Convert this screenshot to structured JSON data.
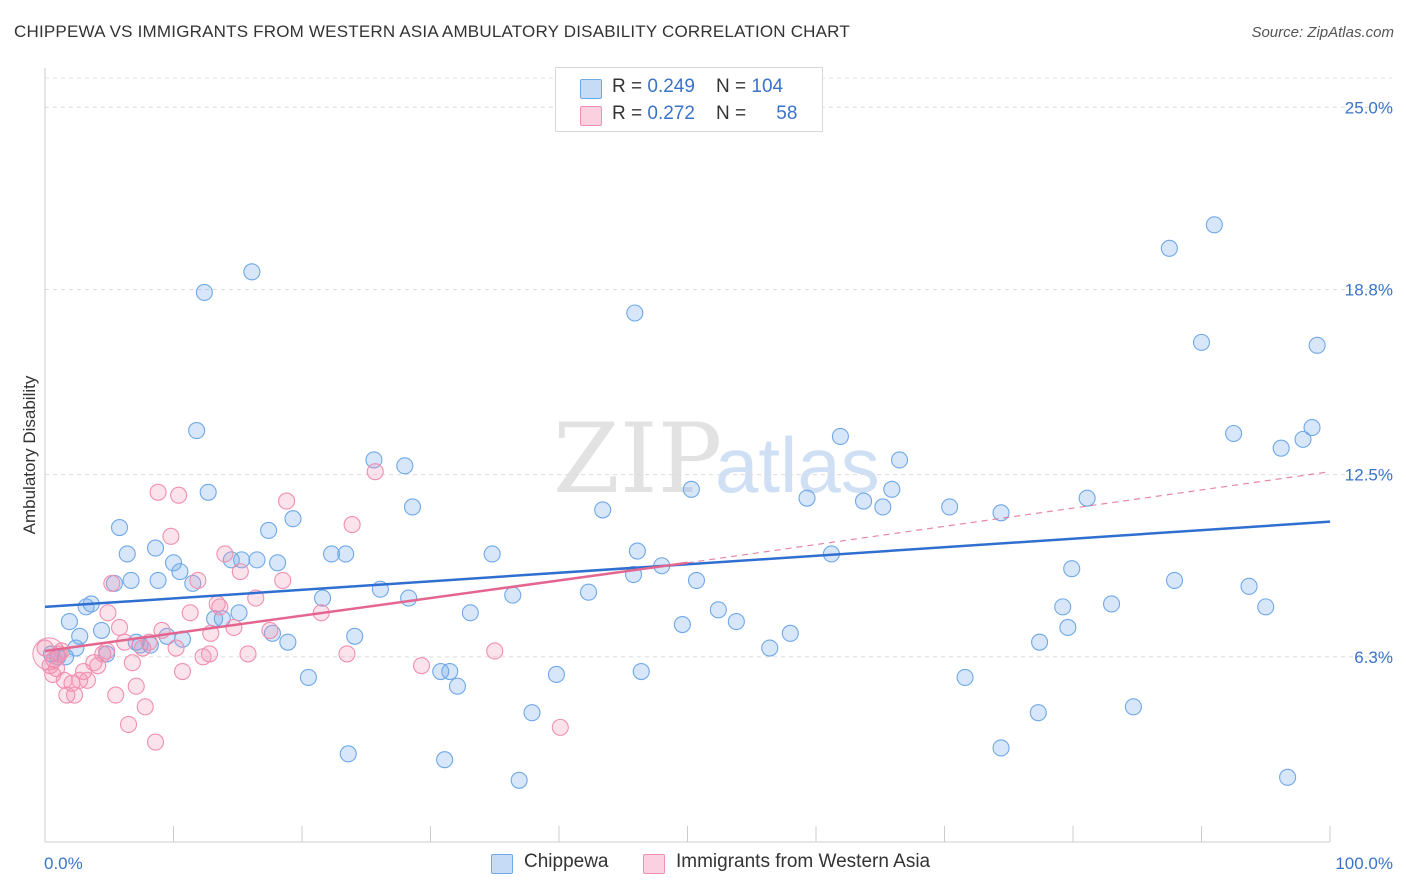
{
  "title": "CHIPPEWA VS IMMIGRANTS FROM WESTERN ASIA AMBULATORY DISABILITY CORRELATION CHART",
  "source": "Source: ZipAtlas.com",
  "watermark": {
    "zip": "ZIP",
    "atlas": "atlas"
  },
  "legend": {
    "rows": [
      {
        "r_label": "R = ",
        "r_value": "0.249",
        "n_label": "N = ",
        "n_value": "104",
        "color": "#6fa8e8"
      },
      {
        "r_label": "R = ",
        "r_value": "0.272",
        "n_label": "N = ",
        "n_value": "58",
        "color": "#f18fb0"
      }
    ]
  },
  "bottom_legend": [
    {
      "label": "Chippewa",
      "color": "#6fa8e8"
    },
    {
      "label": "Immigrants from Western Asia",
      "color": "#f18fb0"
    }
  ],
  "chart_data": {
    "type": "scatter",
    "title": "CHIPPEWA VS IMMIGRANTS FROM WESTERN ASIA AMBULATORY DISABILITY CORRELATION CHART",
    "xlabel": "",
    "ylabel": "Ambulatory Disability",
    "xlim": [
      0,
      100
    ],
    "ylim": [
      0,
      26.2
    ],
    "x_tick_labels": [
      "0.0%",
      "100.0%"
    ],
    "y_ticks": [
      6.3,
      12.5,
      18.8,
      25.0
    ],
    "y_tick_labels": [
      "6.3%",
      "12.5%",
      "18.8%",
      "25.0%"
    ],
    "grid": true,
    "legend_position": "top-center",
    "series": [
      {
        "name": "Chippewa",
        "color": "#6fa8e8",
        "R": 0.249,
        "N": 104,
        "trend": {
          "x": [
            0,
            100
          ],
          "y": [
            8.0,
            10.9
          ],
          "color": "#2f6fd0"
        },
        "points": [
          [
            0.5,
            6.4
          ],
          [
            1.0,
            6.3
          ],
          [
            1.6,
            6.3
          ],
          [
            1.9,
            7.5
          ],
          [
            2.4,
            6.6
          ],
          [
            2.7,
            7.0
          ],
          [
            3.2,
            8.0
          ],
          [
            3.6,
            8.1
          ],
          [
            4.4,
            7.2
          ],
          [
            4.8,
            6.4
          ],
          [
            5.4,
            8.8
          ],
          [
            5.8,
            10.7
          ],
          [
            6.4,
            9.8
          ],
          [
            6.7,
            8.9
          ],
          [
            7.1,
            6.8
          ],
          [
            7.4,
            6.7
          ],
          [
            8.2,
            6.7
          ],
          [
            8.6,
            10.0
          ],
          [
            8.8,
            8.9
          ],
          [
            9.5,
            7.0
          ],
          [
            10.0,
            9.5
          ],
          [
            10.5,
            9.2
          ],
          [
            10.7,
            6.9
          ],
          [
            11.5,
            8.8
          ],
          [
            11.8,
            14.0
          ],
          [
            12.4,
            18.7
          ],
          [
            12.7,
            11.9
          ],
          [
            13.2,
            7.6
          ],
          [
            13.8,
            7.6
          ],
          [
            14.5,
            9.6
          ],
          [
            15.1,
            7.8
          ],
          [
            15.3,
            9.6
          ],
          [
            16.1,
            19.4
          ],
          [
            16.5,
            9.6
          ],
          [
            17.4,
            10.6
          ],
          [
            17.7,
            7.1
          ],
          [
            18.1,
            9.5
          ],
          [
            18.9,
            6.8
          ],
          [
            19.3,
            11.0
          ],
          [
            20.5,
            5.6
          ],
          [
            21.6,
            8.3
          ],
          [
            22.3,
            9.8
          ],
          [
            23.4,
            9.8
          ],
          [
            23.6,
            3.0
          ],
          [
            24.1,
            7.0
          ],
          [
            25.6,
            13.0
          ],
          [
            26.1,
            8.6
          ],
          [
            28.0,
            12.8
          ],
          [
            28.3,
            8.3
          ],
          [
            28.6,
            11.4
          ],
          [
            30.8,
            5.8
          ],
          [
            31.1,
            2.8
          ],
          [
            31.5,
            5.8
          ],
          [
            32.1,
            5.3
          ],
          [
            33.1,
            7.8
          ],
          [
            34.8,
            9.8
          ],
          [
            36.4,
            8.4
          ],
          [
            36.9,
            2.1
          ],
          [
            37.9,
            4.4
          ],
          [
            39.8,
            5.7
          ],
          [
            42.3,
            8.5
          ],
          [
            43.4,
            11.3
          ],
          [
            45.8,
            9.1
          ],
          [
            45.9,
            18.0
          ],
          [
            46.1,
            9.9
          ],
          [
            46.4,
            5.8
          ],
          [
            48.0,
            9.4
          ],
          [
            49.6,
            7.4
          ],
          [
            50.3,
            12.0
          ],
          [
            50.7,
            8.9
          ],
          [
            52.4,
            7.9
          ],
          [
            53.8,
            7.5
          ],
          [
            56.4,
            6.6
          ],
          [
            58.0,
            7.1
          ],
          [
            59.3,
            11.7
          ],
          [
            61.2,
            9.8
          ],
          [
            61.9,
            13.8
          ],
          [
            63.7,
            11.6
          ],
          [
            65.2,
            11.4
          ],
          [
            65.9,
            12.0
          ],
          [
            66.5,
            13.0
          ],
          [
            70.4,
            11.4
          ],
          [
            71.6,
            5.6
          ],
          [
            74.4,
            11.2
          ],
          [
            74.4,
            3.2
          ],
          [
            77.3,
            4.4
          ],
          [
            77.4,
            6.8
          ],
          [
            79.2,
            8.0
          ],
          [
            79.6,
            7.3
          ],
          [
            79.9,
            9.3
          ],
          [
            81.1,
            11.7
          ],
          [
            83.0,
            8.1
          ],
          [
            84.7,
            4.6
          ],
          [
            87.5,
            20.2
          ],
          [
            87.9,
            8.9
          ],
          [
            90.0,
            17.0
          ],
          [
            91.0,
            21.0
          ],
          [
            92.5,
            13.9
          ],
          [
            93.7,
            8.7
          ],
          [
            95.0,
            8.0
          ],
          [
            96.2,
            13.4
          ],
          [
            96.7,
            2.2
          ],
          [
            97.9,
            13.7
          ],
          [
            98.6,
            14.1
          ],
          [
            99.0,
            16.9
          ]
        ]
      },
      {
        "name": "Immigrants from Western Asia",
        "color": "#f18fb0",
        "R": 0.272,
        "N": 58,
        "trend": {
          "x": [
            0,
            50
          ],
          "y": [
            6.5,
            9.5
          ],
          "color": "#e4668f",
          "dashed_extension": {
            "x": [
              50,
              100
            ],
            "y": [
              9.5,
              12.6
            ]
          }
        },
        "points": [
          [
            0.0,
            6.6
          ],
          [
            0.4,
            6.0
          ],
          [
            0.6,
            5.7
          ],
          [
            0.9,
            5.9
          ],
          [
            1.3,
            6.5
          ],
          [
            1.5,
            5.5
          ],
          [
            1.7,
            5.0
          ],
          [
            2.1,
            5.4
          ],
          [
            2.3,
            5.0
          ],
          [
            2.7,
            5.5
          ],
          [
            3.0,
            5.8
          ],
          [
            3.3,
            5.5
          ],
          [
            3.8,
            6.1
          ],
          [
            4.1,
            6.0
          ],
          [
            4.5,
            6.4
          ],
          [
            4.8,
            6.5
          ],
          [
            4.9,
            7.8
          ],
          [
            5.2,
            8.8
          ],
          [
            5.5,
            5.0
          ],
          [
            5.8,
            7.3
          ],
          [
            6.2,
            6.8
          ],
          [
            6.5,
            4.0
          ],
          [
            6.8,
            6.1
          ],
          [
            7.1,
            5.3
          ],
          [
            7.6,
            6.6
          ],
          [
            7.8,
            4.6
          ],
          [
            8.1,
            6.8
          ],
          [
            8.6,
            3.4
          ],
          [
            8.8,
            11.9
          ],
          [
            9.1,
            7.2
          ],
          [
            9.8,
            10.4
          ],
          [
            10.2,
            6.6
          ],
          [
            10.4,
            11.8
          ],
          [
            10.7,
            5.8
          ],
          [
            11.3,
            7.8
          ],
          [
            11.9,
            8.9
          ],
          [
            12.3,
            6.3
          ],
          [
            12.8,
            6.4
          ],
          [
            12.9,
            7.1
          ],
          [
            13.4,
            8.1
          ],
          [
            13.6,
            8.0
          ],
          [
            14.0,
            9.8
          ],
          [
            14.7,
            7.3
          ],
          [
            15.2,
            9.2
          ],
          [
            15.8,
            6.4
          ],
          [
            16.4,
            8.3
          ],
          [
            17.5,
            7.2
          ],
          [
            18.5,
            8.9
          ],
          [
            18.8,
            11.6
          ],
          [
            21.5,
            7.8
          ],
          [
            23.5,
            6.4
          ],
          [
            23.9,
            10.8
          ],
          [
            25.7,
            12.6
          ],
          [
            29.3,
            6.0
          ],
          [
            35.0,
            6.5
          ],
          [
            40.1,
            3.9
          ],
          [
            0.7,
            6.2
          ],
          [
            1.1,
            6.4
          ]
        ]
      }
    ]
  }
}
